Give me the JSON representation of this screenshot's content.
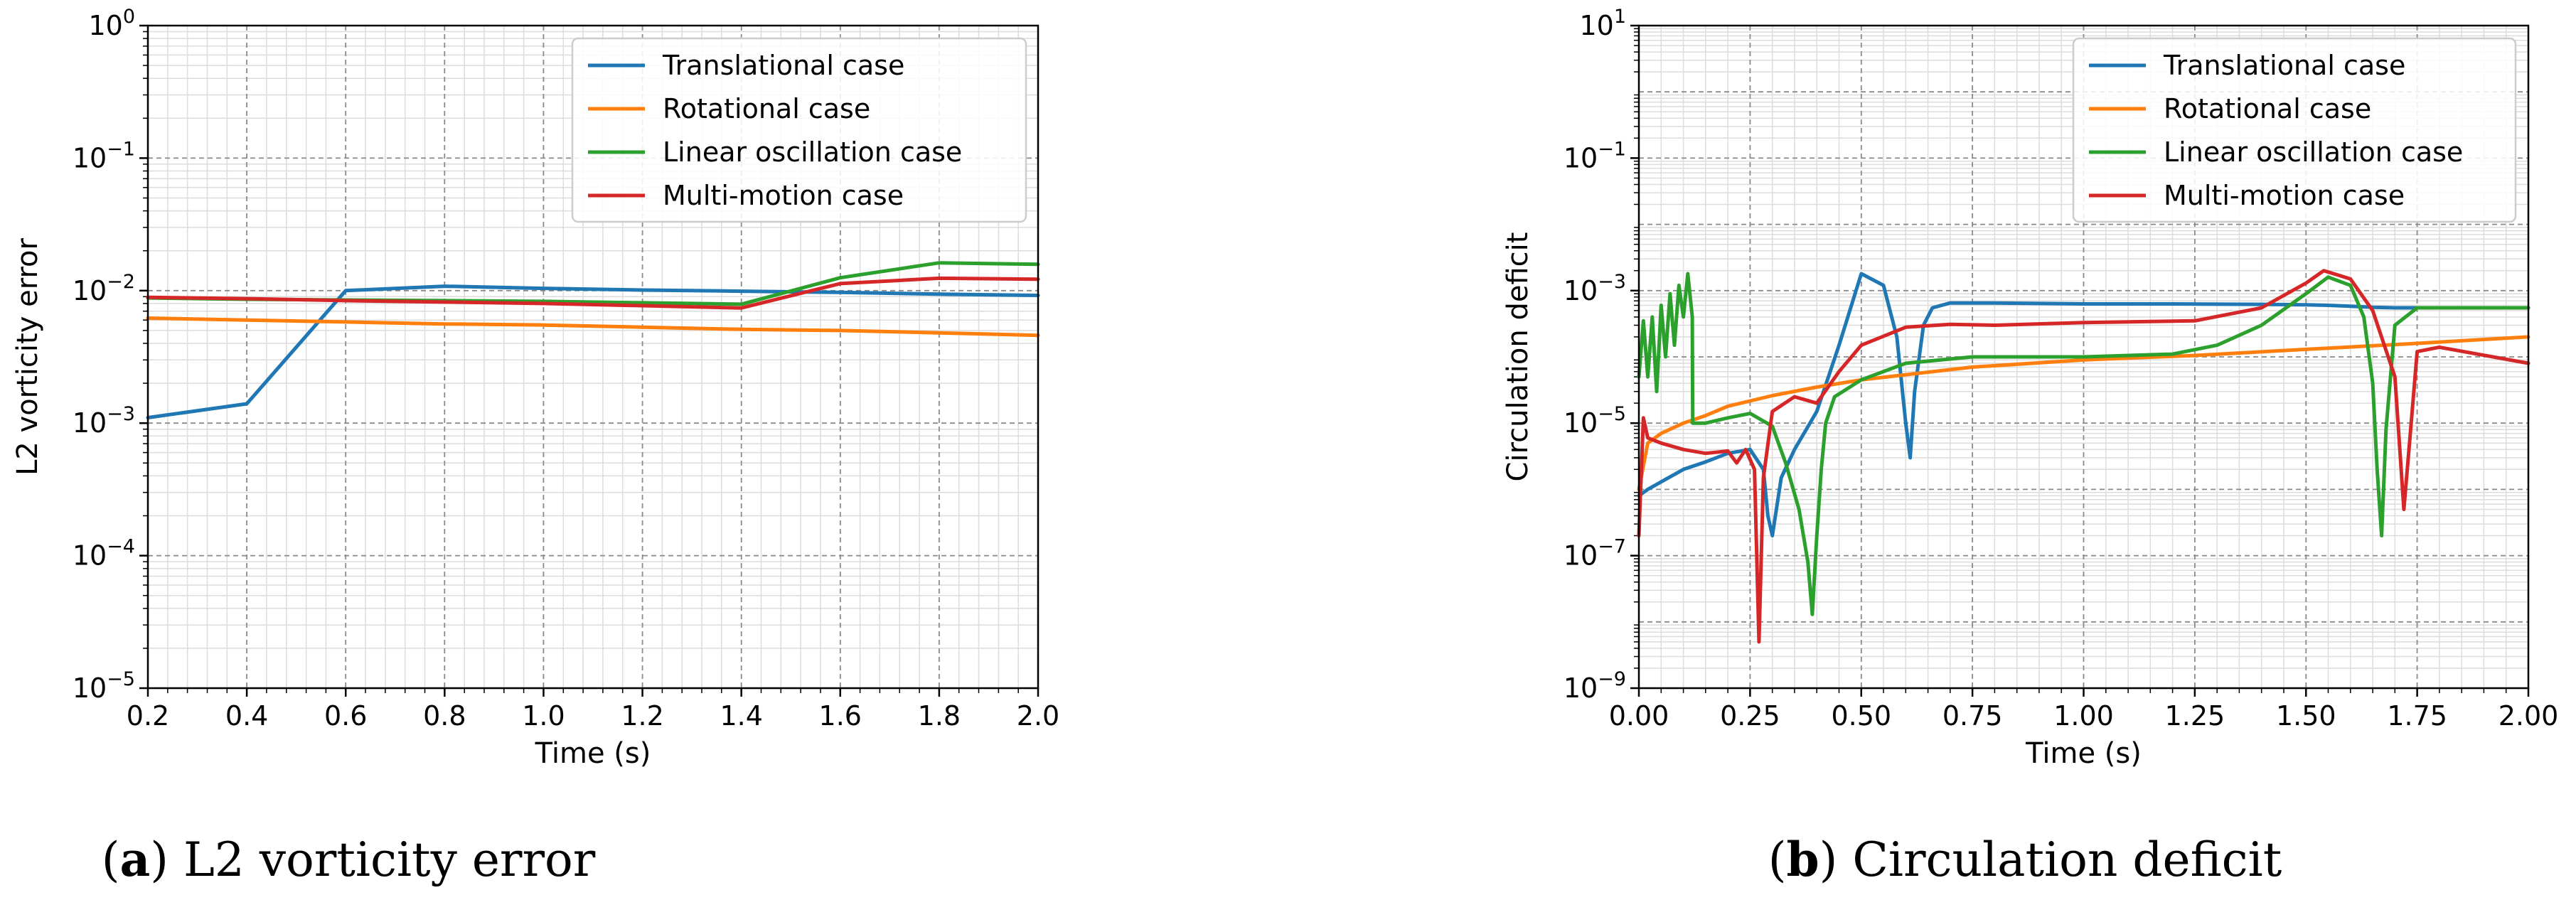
{
  "figure": {
    "caption_a": {
      "label": "a",
      "text": "L2 vorticity error"
    },
    "caption_b": {
      "label": "b",
      "text": "Circulation deficit"
    }
  },
  "colors": {
    "translational": "#1f77b4",
    "rotational": "#ff7f0e",
    "linear": "#2ca02c",
    "multi": "#d62728"
  },
  "chart_data": [
    {
      "id": "a",
      "type": "line",
      "title": "",
      "xlabel": "Time (s)",
      "ylabel": "L2 vorticity error",
      "yscale": "log",
      "xlim": [
        0.2,
        2.0
      ],
      "ylim": [
        1e-05,
        1
      ],
      "xticks": [
        0.2,
        0.4,
        0.6,
        0.8,
        1.0,
        1.2,
        1.4,
        1.6,
        1.8,
        2.0
      ],
      "xtick_labels": [
        "0.2",
        "0.4",
        "0.6",
        "0.8",
        "1.0",
        "1.2",
        "1.4",
        "1.6",
        "1.8",
        "2.0"
      ],
      "ytick_exponents": [
        -5,
        -4,
        -3,
        -2,
        -1,
        0
      ],
      "grid": true,
      "legend_position": "top-right",
      "series": [
        {
          "name": "Translational case",
          "color_key": "translational",
          "x": [
            0.2,
            0.4,
            0.6,
            0.8,
            1.0,
            1.2,
            1.4,
            1.6,
            1.8,
            2.0
          ],
          "y": [
            0.0011,
            0.0014,
            0.01,
            0.0108,
            0.0104,
            0.0101,
            0.0099,
            0.0097,
            0.0094,
            0.0092
          ]
        },
        {
          "name": "Rotational case",
          "color_key": "rotational",
          "x": [
            0.2,
            0.4,
            0.6,
            0.8,
            1.0,
            1.2,
            1.4,
            1.6,
            1.8,
            2.0
          ],
          "y": [
            0.0062,
            0.006,
            0.0058,
            0.0056,
            0.0055,
            0.0053,
            0.0051,
            0.005,
            0.0048,
            0.0046
          ]
        },
        {
          "name": "Linear oscillation case",
          "color_key": "linear",
          "x": [
            0.2,
            0.4,
            0.6,
            0.8,
            1.0,
            1.2,
            1.4,
            1.6,
            1.8,
            2.0
          ],
          "y": [
            0.0088,
            0.0086,
            0.0085,
            0.0084,
            0.0083,
            0.0081,
            0.0079,
            0.0125,
            0.0162,
            0.0158
          ]
        },
        {
          "name": "Multi-motion case",
          "color_key": "multi",
          "x": [
            0.2,
            0.4,
            0.6,
            0.8,
            1.0,
            1.2,
            1.4,
            1.6,
            1.8,
            2.0
          ],
          "y": [
            0.0089,
            0.0087,
            0.0084,
            0.0082,
            0.008,
            0.0077,
            0.0074,
            0.0113,
            0.0124,
            0.0122
          ]
        }
      ]
    },
    {
      "id": "b",
      "type": "line",
      "title": "",
      "xlabel": "Time (s)",
      "ylabel": "Circulation deficit",
      "yscale": "log",
      "xlim": [
        0.0,
        2.0
      ],
      "ylim": [
        1e-09,
        10
      ],
      "xticks": [
        0.0,
        0.25,
        0.5,
        0.75,
        1.0,
        1.25,
        1.5,
        1.75,
        2.0
      ],
      "xtick_labels": [
        "0.00",
        "0.25",
        "0.50",
        "0.75",
        "1.00",
        "1.25",
        "1.50",
        "1.75",
        "2.00"
      ],
      "ytick_exponents": [
        -9,
        -7,
        -5,
        -3,
        -1,
        1
      ],
      "grid": true,
      "legend_position": "top-right",
      "series": [
        {
          "name": "Translational case",
          "color_key": "translational",
          "x": [
            0.0,
            0.02,
            0.05,
            0.1,
            0.15,
            0.2,
            0.25,
            0.28,
            0.29,
            0.3,
            0.32,
            0.35,
            0.4,
            0.45,
            0.5,
            0.55,
            0.58,
            0.6,
            0.61,
            0.62,
            0.64,
            0.66,
            0.7,
            0.8,
            1.0,
            1.2,
            1.4,
            1.5,
            1.55,
            1.6,
            1.65,
            1.7,
            1.8,
            2.0
          ],
          "y": [
            8e-07,
            1e-06,
            1.3e-06,
            2e-06,
            2.6e-06,
            3.5e-06,
            4e-06,
            2e-06,
            4e-07,
            2e-07,
            1.5e-06,
            4e-06,
            1.5e-05,
            0.00015,
            0.0018,
            0.0012,
            0.0002,
            1e-05,
            3e-06,
            3e-05,
            0.0003,
            0.00055,
            0.00065,
            0.00065,
            0.00063,
            0.00063,
            0.00062,
            0.00061,
            0.0006,
            0.00058,
            0.00056,
            0.00055,
            0.00055,
            0.00055
          ]
        },
        {
          "name": "Rotational case",
          "color_key": "rotational",
          "x": [
            0.0,
            0.02,
            0.05,
            0.1,
            0.15,
            0.2,
            0.3,
            0.4,
            0.5,
            0.75,
            1.0,
            1.25,
            1.5,
            1.75,
            2.0
          ],
          "y": [
            1e-06,
            5e-06,
            7e-06,
            1e-05,
            1.3e-05,
            1.8e-05,
            2.6e-05,
            3.5e-05,
            4.5e-05,
            7e-05,
            9e-05,
            0.000105,
            0.00013,
            0.00016,
            0.0002
          ]
        },
        {
          "name": "Linear oscillation case",
          "color_key": "linear",
          "x": [
            0.0,
            0.01,
            0.02,
            0.03,
            0.04,
            0.05,
            0.06,
            0.07,
            0.08,
            0.09,
            0.1,
            0.11,
            0.12,
            0.121,
            0.15,
            0.2,
            0.25,
            0.3,
            0.33,
            0.36,
            0.38,
            0.39,
            0.4,
            0.41,
            0.42,
            0.44,
            0.5,
            0.6,
            0.75,
            1.0,
            1.2,
            1.3,
            1.4,
            1.5,
            1.55,
            1.6,
            1.63,
            1.65,
            1.66,
            1.67,
            1.68,
            1.7,
            1.75,
            2.0
          ],
          "y": [
            5e-05,
            0.00035,
            5e-05,
            0.0004,
            3e-05,
            0.0006,
            0.0001,
            0.0009,
            0.00015,
            0.0012,
            0.0004,
            0.0018,
            0.0004,
            1e-05,
            1e-05,
            1.2e-05,
            1.4e-05,
            9e-06,
            2.5e-06,
            5e-07,
            8e-08,
            1.3e-08,
            2e-07,
            2e-06,
            1e-05,
            2.5e-05,
            4.5e-05,
            8e-05,
            0.0001,
            0.0001,
            0.00011,
            0.00015,
            0.0003,
            0.0009,
            0.0016,
            0.0012,
            0.0004,
            4e-05,
            2e-06,
            2e-07,
            8e-06,
            0.0003,
            0.00055,
            0.00055
          ]
        },
        {
          "name": "Multi-motion case",
          "color_key": "multi",
          "x": [
            0.0,
            0.01,
            0.02,
            0.05,
            0.1,
            0.15,
            0.2,
            0.22,
            0.24,
            0.26,
            0.27,
            0.28,
            0.3,
            0.35,
            0.4,
            0.45,
            0.5,
            0.6,
            0.7,
            0.8,
            1.0,
            1.25,
            1.4,
            1.5,
            1.54,
            1.6,
            1.65,
            1.7,
            1.72,
            1.73,
            1.75,
            1.8,
            2.0
          ],
          "y": [
            2e-07,
            1.2e-05,
            6e-06,
            5e-06,
            4e-06,
            3.5e-06,
            3.8e-06,
            2.5e-06,
            4e-06,
            2e-06,
            5e-09,
            1.5e-06,
            1.5e-05,
            2.5e-05,
            2e-05,
            6e-05,
            0.00015,
            0.00028,
            0.00031,
            0.0003,
            0.00033,
            0.00035,
            0.00055,
            0.0013,
            0.002,
            0.0015,
            0.0005,
            5e-05,
            5e-07,
            3e-06,
            0.00012,
            0.00014,
            8e-05
          ]
        }
      ]
    }
  ]
}
